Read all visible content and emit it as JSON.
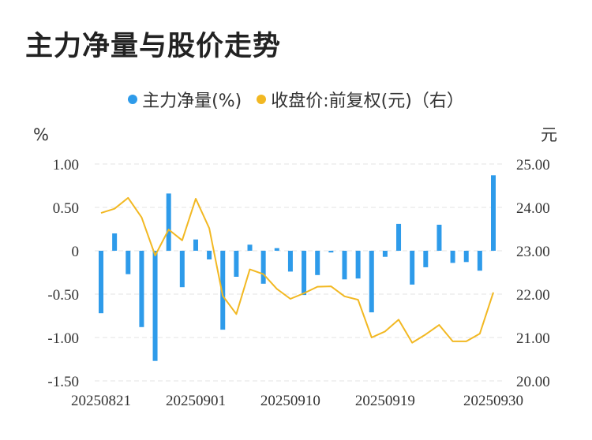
{
  "title": "主力净量与股价走势",
  "colors": {
    "bar": "#2E9BEA",
    "line": "#F2B822",
    "grid": "#E3E3E3",
    "text": "#333333"
  },
  "chart_data": {
    "type": "bar+line",
    "legend": [
      {
        "key": "net",
        "label": "主力净量(%)",
        "color": "#2E9BEA",
        "marker": "circle"
      },
      {
        "key": "price",
        "label": "收盘价:前复权(元)（右）",
        "color": "#F2B822",
        "marker": "circle"
      }
    ],
    "legend_position": "top-center",
    "y_left": {
      "unit": "%",
      "range": [
        -1.5,
        1.0
      ],
      "ticks": [
        1.0,
        0.5,
        0,
        -0.5,
        -1.0,
        -1.5
      ],
      "tick_labels": [
        "1.00",
        "0.50",
        "0",
        "-0.50",
        "-1.00",
        "-1.50"
      ]
    },
    "y_right": {
      "unit": "元",
      "range": [
        20.0,
        25.0
      ],
      "ticks": [
        25.0,
        24.0,
        23.0,
        22.0,
        21.0,
        20.0
      ],
      "tick_labels": [
        "25.00",
        "24.00",
        "23.00",
        "22.00",
        "21.00",
        "20.00"
      ]
    },
    "x_tick_labels": [
      {
        "index": 0,
        "label": "20250821"
      },
      {
        "index": 7,
        "label": "20250901"
      },
      {
        "index": 14,
        "label": "20250910"
      },
      {
        "index": 21,
        "label": "20250919"
      },
      {
        "index": 29,
        "label": "20250930"
      }
    ],
    "grid": true,
    "series": [
      {
        "name": "主力净量(%)",
        "type": "bar",
        "axis": "left",
        "values": [
          -0.72,
          0.2,
          -0.27,
          -0.88,
          -1.27,
          0.66,
          -0.42,
          0.13,
          -0.1,
          -0.91,
          -0.3,
          0.07,
          -0.38,
          0.03,
          -0.24,
          -0.51,
          -0.28,
          -0.02,
          -0.33,
          -0.32,
          -0.71,
          -0.07,
          0.31,
          -0.39,
          -0.19,
          0.3,
          -0.14,
          -0.13,
          -0.23,
          0.87
        ]
      },
      {
        "name": "收盘价:前复权(元)（右）",
        "type": "line",
        "axis": "right",
        "values": [
          23.87,
          23.97,
          24.22,
          23.77,
          22.89,
          23.49,
          23.24,
          24.2,
          23.52,
          21.96,
          21.54,
          22.57,
          22.46,
          22.12,
          21.89,
          22.02,
          22.17,
          22.18,
          21.95,
          21.87,
          21.0,
          21.14,
          21.41,
          20.88,
          21.07,
          21.29,
          20.91,
          20.91,
          21.09,
          22.04
        ]
      }
    ]
  }
}
